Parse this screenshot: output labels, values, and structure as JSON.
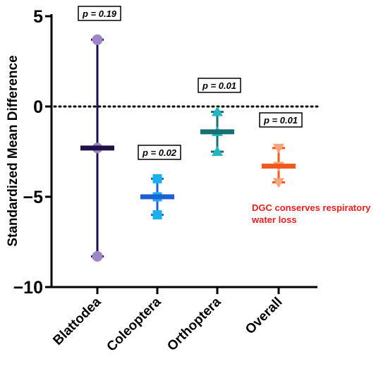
{
  "chart_data": {
    "type": "scatter",
    "subtype": "mean-with-range",
    "title": "",
    "xlabel": "",
    "ylabel": "Standardized Mean Difference",
    "ylim": [
      -10,
      5
    ],
    "yticks": [
      5,
      0,
      -5,
      -10
    ],
    "ytick_labels": [
      "5",
      "0",
      "−5",
      "−10"
    ],
    "reference_line": {
      "y": 0,
      "style": "dotted"
    },
    "grid": false,
    "series": [
      {
        "name": "Blattodea",
        "mean": -2.3,
        "lower": -8.3,
        "upper": 3.7,
        "p_label": "p = 0.19",
        "marker": "circle",
        "color": "#1f1147",
        "marker_color": "#9f86c8"
      },
      {
        "name": "Coleoptera",
        "mean": -5.0,
        "lower": -6.0,
        "upper": -4.0,
        "p_label": "p = 0.02",
        "marker": "square",
        "color": "#1e5fd6",
        "marker_color": "#1ab0ee"
      },
      {
        "name": "Orthoptera",
        "mean": -1.4,
        "lower": -2.5,
        "upper": -0.3,
        "p_label": "p = 0.01",
        "marker": "triangle-up",
        "color": "#1a6f73",
        "marker_color": "#23b6be"
      },
      {
        "name": "Overall",
        "mean": -3.3,
        "lower": -4.2,
        "upper": -2.3,
        "p_label": "p = 0.01",
        "marker": "triangle-down",
        "color": "#f15a1e",
        "marker_color": "#f6a47c"
      }
    ],
    "annotations": [
      {
        "text_lines": [
          "DGC conserves respiratory",
          "water loss"
        ],
        "color": "#ee1c1c"
      }
    ]
  }
}
